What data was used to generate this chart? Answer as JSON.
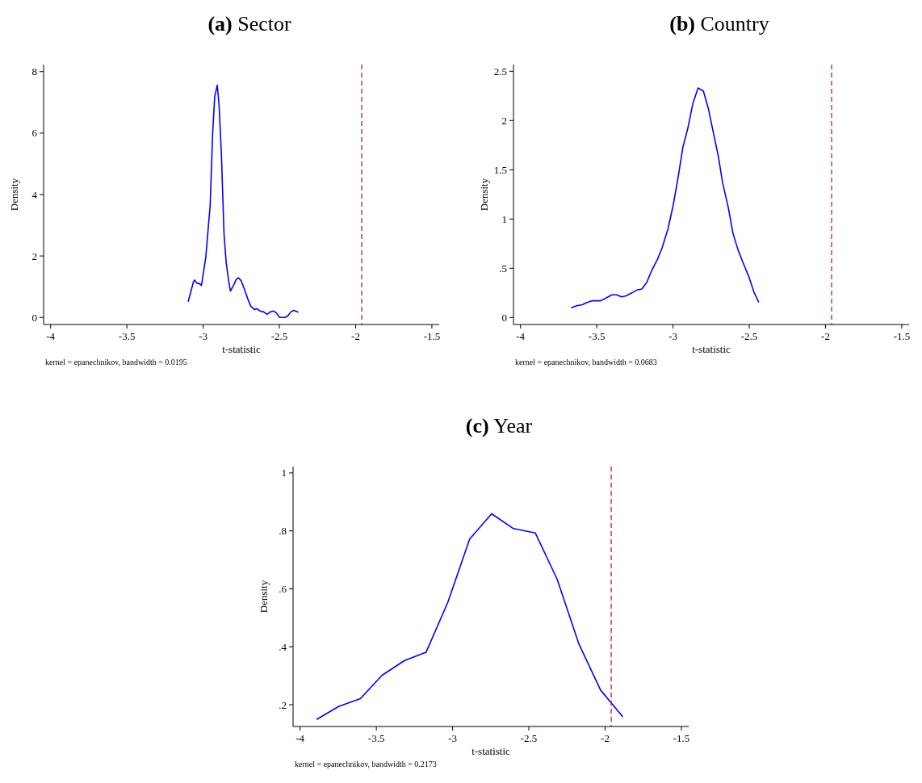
{
  "chart_data": [
    {
      "type": "line",
      "title": "(a) Sector",
      "xlabel": "t-statistic",
      "ylabel": "Density",
      "xlim": [
        -4.046,
        -1.452
      ],
      "ylim": [
        -0.23,
        8.23
      ],
      "xticks": [
        -4,
        -3.5,
        -3,
        -2.5,
        -2,
        -1.5
      ],
      "yticks": [
        0,
        2,
        4,
        6,
        8
      ],
      "series": [
        {
          "color": "#0000ff",
          "x": [
            -3.097,
            -3.064,
            -3.055,
            -3.042,
            -3.024,
            -3.011,
            -2.983,
            -2.954,
            -2.937,
            -2.924,
            -2.907,
            -2.895,
            -2.88,
            -2.863,
            -2.849,
            -2.834,
            -2.821,
            -2.799,
            -2.784,
            -2.769,
            -2.751,
            -2.729,
            -2.707,
            -2.688,
            -2.664,
            -2.646,
            -2.627,
            -2.603,
            -2.581,
            -2.559,
            -2.541,
            -2.522,
            -2.499,
            -2.462,
            -2.443,
            -2.425,
            -2.406,
            -2.379
          ],
          "values": [
            0.53,
            1.15,
            1.22,
            1.12,
            1.1,
            1.04,
            1.94,
            3.64,
            6.04,
            7.19,
            7.56,
            6.87,
            5.3,
            2.72,
            1.8,
            1.24,
            0.86,
            1.06,
            1.23,
            1.29,
            1.2,
            0.92,
            0.6,
            0.37,
            0.26,
            0.28,
            0.21,
            0.18,
            0.1,
            0.18,
            0.21,
            0.16,
            0,
            0,
            0.06,
            0.18,
            0.23,
            0.18
          ]
        }
      ],
      "ref_lines": [
        {
          "axis": "x",
          "value": -1.96,
          "color": "#b22234",
          "line_style": "dashed"
        }
      ],
      "annotations": [
        "kernel = epanechnikov, bandwidth = 0.0195"
      ]
    },
    {
      "type": "line",
      "title": "(b) Country",
      "xlabel": "t-statistic",
      "ylabel": "Density",
      "xlim": [
        -4.046,
        -1.452
      ],
      "ylim": [
        -0.071,
        2.568
      ],
      "xticks": [
        -4,
        -3.5,
        -3,
        -2.5,
        -2,
        -1.5
      ],
      "yticks": [
        0,
        {
          "value": 0.5,
          "label": ".5"
        },
        1,
        1.5,
        2,
        2.5
      ],
      "series": [
        {
          "color": "#0000ff",
          "x": [
            -3.665,
            -3.632,
            -3.595,
            -3.567,
            -3.53,
            -3.474,
            -3.437,
            -3.4,
            -3.368,
            -3.338,
            -3.307,
            -3.27,
            -3.236,
            -3.204,
            -3.171,
            -3.139,
            -3.102,
            -3.071,
            -3.033,
            -3.0,
            -2.968,
            -2.935,
            -2.903,
            -2.87,
            -2.836,
            -2.801,
            -2.768,
            -2.736,
            -2.703,
            -2.675,
            -2.638,
            -2.606,
            -2.572,
            -2.539,
            -2.504,
            -2.47,
            -2.439
          ],
          "values": [
            0.1,
            0.12,
            0.13,
            0.15,
            0.17,
            0.17,
            0.2,
            0.23,
            0.23,
            0.21,
            0.22,
            0.25,
            0.28,
            0.29,
            0.36,
            0.48,
            0.59,
            0.71,
            0.9,
            1.13,
            1.41,
            1.73,
            1.92,
            2.17,
            2.33,
            2.3,
            2.12,
            1.88,
            1.64,
            1.37,
            1.12,
            0.85,
            0.68,
            0.55,
            0.42,
            0.26,
            0.16
          ]
        }
      ],
      "ref_lines": [
        {
          "axis": "x",
          "value": -1.96,
          "color": "#b22234",
          "line_style": "dashed"
        }
      ],
      "annotations": [
        "kernel = epanechnikov, bandwidth = 0.0683"
      ]
    },
    {
      "type": "line",
      "title": "(c) Year",
      "xlabel": "t-statistic",
      "ylabel": "Density",
      "xlim": [
        -4.046,
        -1.452
      ],
      "ylim": [
        0.125,
        1.022
      ],
      "xticks": [
        -4,
        -3.5,
        -3,
        -2.5,
        -2,
        -1.5
      ],
      "yticks": [
        {
          "value": 0.2,
          "label": ".2"
        },
        {
          "value": 0.4,
          "label": ".4"
        },
        {
          "value": 0.6,
          "label": ".6"
        },
        {
          "value": 0.8,
          "label": ".8"
        },
        1
      ],
      "series": [
        {
          "color": "#0000ff",
          "x": [
            -3.889,
            -3.748,
            -3.605,
            -3.462,
            -3.317,
            -3.174,
            -3.031,
            -2.888,
            -2.744,
            -2.601,
            -2.458,
            -2.315,
            -2.172,
            -2.029,
            -1.886
          ],
          "values": [
            0.15,
            0.194,
            0.221,
            0.302,
            0.352,
            0.381,
            0.554,
            0.772,
            0.859,
            0.808,
            0.793,
            0.634,
            0.41,
            0.25,
            0.16
          ]
        }
      ],
      "ref_lines": [
        {
          "axis": "x",
          "value": -1.96,
          "color": "#b22234",
          "line_style": "dashed"
        }
      ],
      "annotations": [
        "kernel = epanechnikov, bandwidth = 0.2173"
      ]
    }
  ]
}
